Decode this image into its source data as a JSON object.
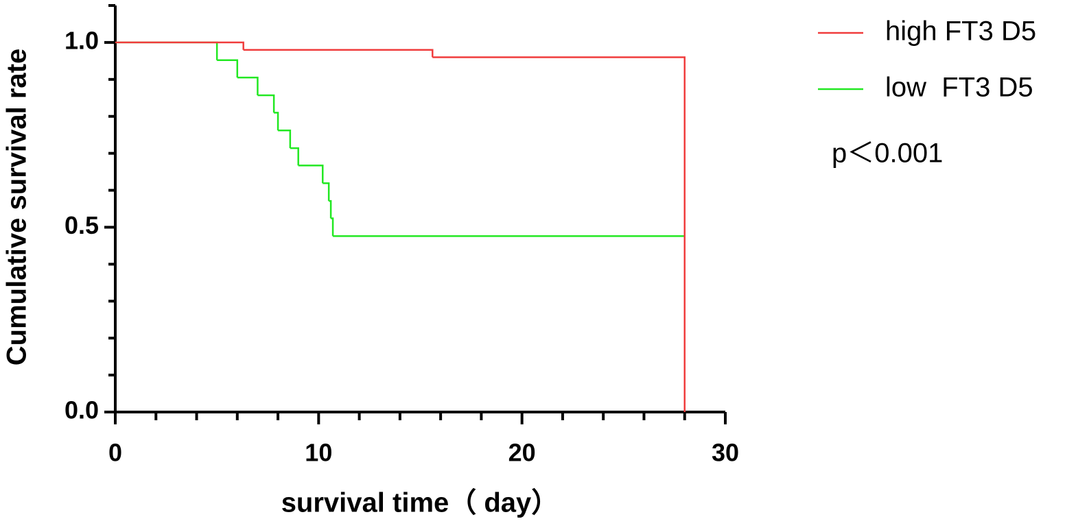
{
  "chart_data": {
    "type": "step",
    "xlabel": "survival time（ day）",
    "ylabel": "Cumulative survival rate",
    "annotation": "p＜0.001",
    "xlim": [
      0,
      30
    ],
    "ylim": [
      0,
      1.1
    ],
    "xticks": [
      0,
      10,
      20,
      30
    ],
    "yticks": [
      {
        "value": 0,
        "label": "0.0"
      },
      0.5,
      {
        "value": 1,
        "label": "1.0"
      }
    ],
    "xminorticks": [
      2,
      4,
      6,
      8,
      12,
      14,
      16,
      18,
      22,
      24,
      26,
      28
    ],
    "yminorticks": [
      0.1,
      0.2,
      0.3,
      0.4,
      0.6,
      0.7,
      0.8,
      0.9,
      1.1
    ],
    "series": [
      {
        "name": "high FT3 D5",
        "color": "#f03c3c",
        "x": [
          0,
          6.3,
          15.6,
          28
        ],
        "values": [
          1,
          0.98,
          0.96,
          0
        ]
      },
      {
        "name": "low  FT3 D5",
        "color": "#22e822",
        "x": [
          0,
          5,
          6,
          7,
          7.8,
          8,
          8.6,
          9,
          10.2,
          10.5,
          10.6,
          10.7,
          28
        ],
        "values": [
          1,
          0.952,
          0.905,
          0.857,
          0.81,
          0.762,
          0.714,
          0.667,
          0.619,
          0.571,
          0.524,
          0.476,
          0.476
        ]
      }
    ]
  }
}
